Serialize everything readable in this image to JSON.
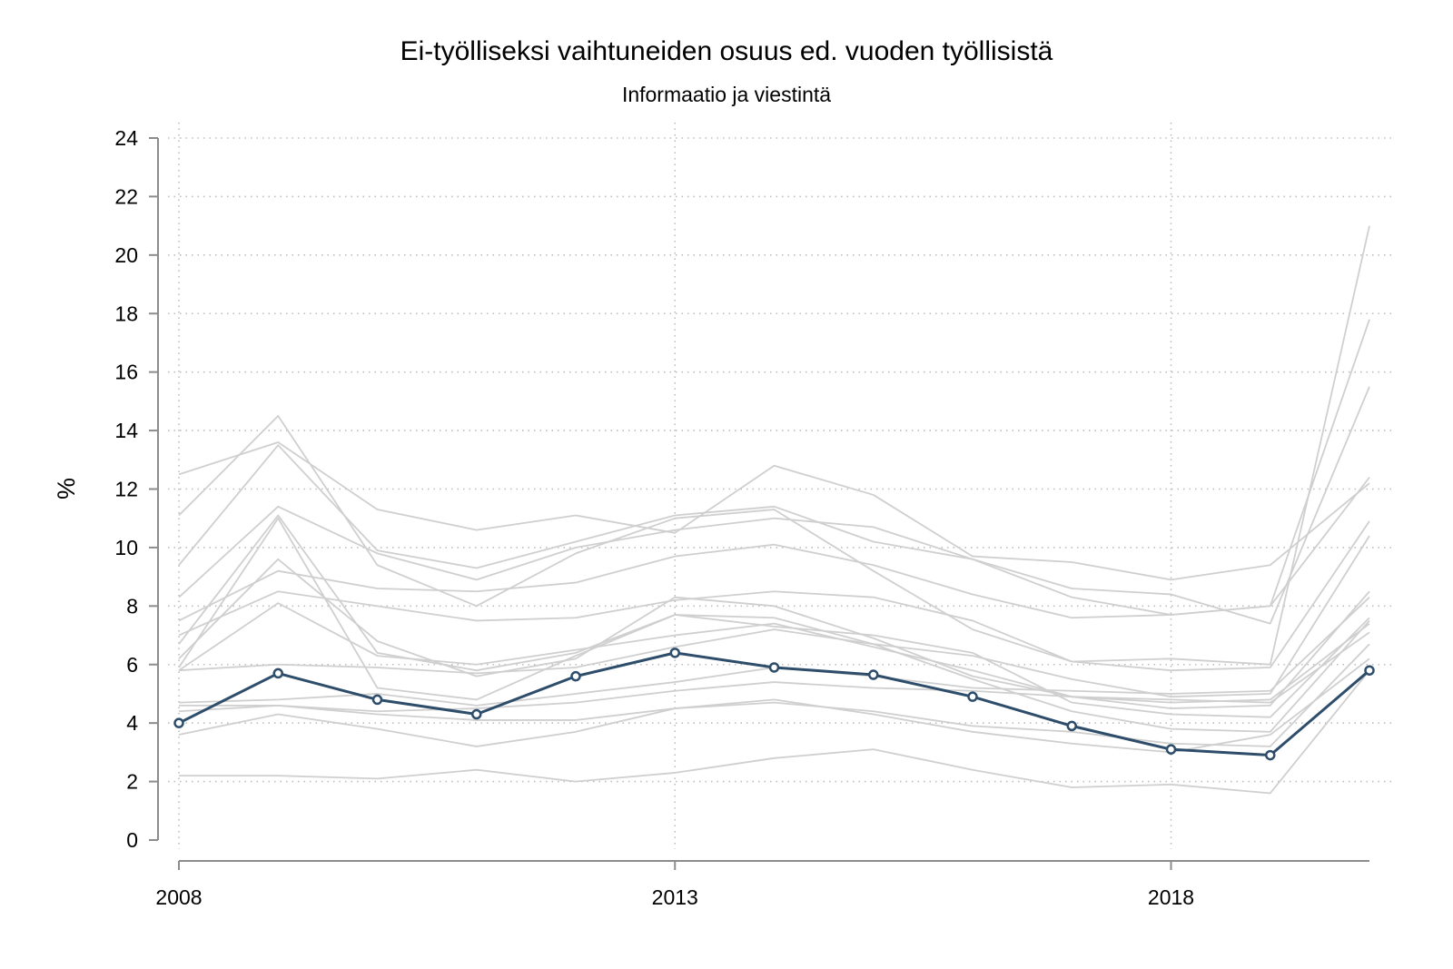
{
  "chart_data": {
    "type": "line",
    "title": "Ei-työlliseksi vaihtuneiden osuus ed. vuoden työllisistä",
    "subtitle": "Informaatio ja viestintä",
    "xlabel": "",
    "ylabel": "%",
    "x": [
      2008,
      2009,
      2010,
      2011,
      2012,
      2013,
      2014,
      2015,
      2016,
      2017,
      2018,
      2019,
      2020
    ],
    "xlim": [
      2008,
      2020
    ],
    "xticks": [
      2008,
      2013,
      2018
    ],
    "ylim": [
      0,
      24
    ],
    "yticks": [
      0,
      2,
      4,
      6,
      8,
      10,
      12,
      14,
      16,
      18,
      20,
      22,
      24
    ],
    "grid": true,
    "highlight_color": "#2e4d6b",
    "background_color": "#cfcfcf",
    "highlight": {
      "values": [
        4.0,
        5.7,
        4.8,
        4.3,
        5.6,
        6.4,
        5.9,
        5.65,
        4.9,
        3.9,
        3.1,
        2.9,
        5.8
      ]
    },
    "background_series": [
      {
        "values": [
          12.5,
          13.6,
          11.3,
          10.6,
          11.1,
          10.5,
          12.8,
          11.8,
          9.7,
          9.5,
          8.9,
          9.4,
          12.2
        ]
      },
      {
        "values": [
          11.1,
          14.5,
          9.4,
          8.0,
          9.8,
          11.0,
          11.3,
          9.2,
          7.2,
          6.1,
          6.2,
          6.0,
          21.0
        ]
      },
      {
        "values": [
          9.4,
          13.5,
          9.9,
          9.3,
          10.2,
          11.1,
          11.4,
          10.2,
          9.6,
          8.3,
          7.7,
          8.0,
          17.8
        ]
      },
      {
        "values": [
          8.3,
          11.4,
          9.8,
          8.9,
          10.0,
          10.6,
          11.0,
          10.7,
          9.6,
          8.6,
          8.4,
          7.4,
          15.5
        ]
      },
      {
        "values": [
          7.5,
          9.2,
          8.6,
          8.5,
          8.8,
          9.7,
          10.1,
          9.4,
          8.4,
          7.6,
          7.7,
          8.0,
          12.4
        ]
      },
      {
        "values": [
          7.0,
          8.5,
          8.0,
          7.5,
          7.6,
          8.2,
          8.5,
          8.3,
          7.5,
          6.1,
          5.8,
          5.9,
          10.9
        ]
      },
      {
        "values": [
          6.7,
          11.1,
          6.4,
          5.8,
          6.4,
          7.7,
          7.6,
          6.7,
          6.3,
          5.5,
          4.9,
          5.0,
          10.4
        ]
      },
      {
        "values": [
          6.2,
          9.6,
          6.8,
          5.6,
          6.2,
          8.3,
          8.0,
          6.9,
          5.6,
          4.9,
          4.5,
          4.6,
          8.5
        ]
      },
      {
        "values": [
          5.9,
          11.0,
          5.2,
          4.8,
          6.3,
          7.7,
          7.3,
          7.0,
          6.4,
          4.7,
          4.3,
          4.2,
          7.6
        ]
      },
      {
        "values": [
          5.8,
          8.1,
          6.3,
          6.0,
          6.5,
          7.0,
          7.4,
          6.6,
          5.8,
          4.9,
          4.7,
          4.8,
          7.4
        ]
      },
      {
        "values": [
          5.8,
          6.0,
          5.9,
          5.7,
          5.9,
          6.6,
          7.2,
          6.7,
          5.5,
          4.4,
          3.8,
          3.7,
          7.5
        ]
      },
      {
        "values": [
          4.7,
          4.8,
          5.0,
          4.6,
          5.0,
          5.4,
          5.9,
          5.6,
          5.2,
          5.1,
          5.0,
          5.1,
          8.3
        ]
      },
      {
        "values": [
          4.6,
          4.6,
          4.4,
          4.5,
          4.7,
          5.1,
          5.4,
          5.2,
          5.1,
          4.9,
          4.8,
          4.7,
          7.1
        ]
      },
      {
        "values": [
          4.4,
          4.6,
          4.3,
          4.1,
          4.1,
          4.5,
          4.7,
          4.4,
          3.9,
          3.7,
          3.3,
          3.2,
          6.7
        ]
      },
      {
        "values": [
          3.6,
          4.3,
          3.8,
          3.2,
          3.7,
          4.5,
          4.8,
          4.3,
          3.7,
          3.3,
          3.0,
          3.6,
          6.2
        ]
      },
      {
        "values": [
          2.2,
          2.2,
          2.1,
          2.4,
          2.0,
          2.3,
          2.8,
          3.1,
          2.4,
          1.8,
          1.9,
          1.6,
          5.8
        ]
      }
    ]
  }
}
